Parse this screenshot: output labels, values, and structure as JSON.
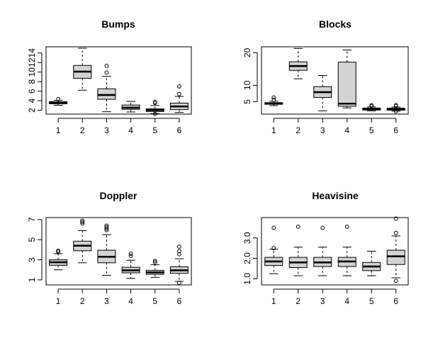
{
  "chart_data": [
    {
      "type": "boxplot",
      "title": "Bumps",
      "categories": [
        "1",
        "2",
        "3",
        "4",
        "5",
        "6"
      ],
      "ylim": [
        1.2,
        15.3
      ],
      "yticks": [
        2,
        4,
        6,
        8,
        10,
        12,
        14
      ],
      "ytick_labels": [
        "2",
        "4",
        "6",
        "8",
        "10",
        "12",
        "14"
      ],
      "boxes": [
        {
          "category": "1",
          "whisker_low": 3.05,
          "q1": 3.35,
          "median": 3.55,
          "q3": 3.8,
          "whisker_high": 4.1,
          "outliers": [
            4.35
          ]
        },
        {
          "category": "2",
          "whisker_low": 6.2,
          "q1": 8.7,
          "median": 10.1,
          "q3": 11.4,
          "whisker_high": 15.0,
          "outliers": []
        },
        {
          "category": "3",
          "whisker_low": 1.7,
          "q1": 4.3,
          "median": 5.2,
          "q3": 6.5,
          "whisker_high": 9.1,
          "outliers": [
            9.9,
            11.3
          ]
        },
        {
          "category": "4",
          "whisker_low": 1.65,
          "q1": 2.2,
          "median": 2.55,
          "q3": 3.1,
          "whisker_high": 3.85,
          "outliers": []
        },
        {
          "category": "5",
          "whisker_low": 1.3,
          "q1": 1.75,
          "median": 2.05,
          "q3": 2.3,
          "whisker_high": 3.0,
          "outliers": [
            3.55,
            3.75,
            1.25
          ]
        },
        {
          "category": "6",
          "whisker_low": 1.55,
          "q1": 2.15,
          "median": 2.8,
          "q3": 3.5,
          "whisker_high": 4.9,
          "outliers": [
            5.4,
            7.0
          ]
        }
      ]
    },
    {
      "type": "boxplot",
      "title": "Blocks",
      "categories": [
        "1",
        "2",
        "3",
        "4",
        "5",
        "6"
      ],
      "ylim": [
        1.2,
        21.8
      ],
      "yticks": [
        5,
        10,
        20
      ],
      "ytick_labels": [
        "5",
        "10",
        "20"
      ],
      "boxes": [
        {
          "category": "1",
          "whisker_low": 3.8,
          "q1": 4.2,
          "median": 4.45,
          "q3": 4.7,
          "whisker_high": 5.1,
          "outliers": [
            5.6,
            6.3
          ]
        },
        {
          "category": "2",
          "whisker_low": 12.0,
          "q1": 14.6,
          "median": 15.9,
          "q3": 17.2,
          "whisker_high": 21.3,
          "outliers": []
        },
        {
          "category": "3",
          "whisker_low": 2.2,
          "q1": 6.3,
          "median": 7.9,
          "q3": 9.6,
          "whisker_high": 13.0,
          "outliers": []
        },
        {
          "category": "4",
          "whisker_low": 3.1,
          "q1": 3.6,
          "median": 4.4,
          "q3": 17.1,
          "whisker_high": 20.8,
          "outliers": []
        },
        {
          "category": "5",
          "whisker_low": 2.2,
          "q1": 2.45,
          "median": 2.8,
          "q3": 3.05,
          "whisker_high": 3.4,
          "outliers": [
            3.7,
            3.9
          ]
        },
        {
          "category": "6",
          "whisker_low": 2.1,
          "q1": 2.4,
          "median": 2.7,
          "q3": 3.0,
          "whisker_high": 3.35,
          "outliers": [
            3.7,
            3.95,
            2.05
          ]
        }
      ]
    },
    {
      "type": "boxplot",
      "title": "Doppler",
      "categories": [
        "1",
        "2",
        "3",
        "4",
        "5",
        "6"
      ],
      "ylim": [
        0.5,
        7.2
      ],
      "yticks": [
        1,
        3,
        5,
        7
      ],
      "ytick_labels": [
        "1",
        "3",
        "5",
        "7"
      ],
      "boxes": [
        {
          "category": "1",
          "whisker_low": 2.0,
          "q1": 2.45,
          "median": 2.75,
          "q3": 3.0,
          "whisker_high": 3.6,
          "outliers": [
            3.8,
            3.9
          ]
        },
        {
          "category": "2",
          "whisker_low": 2.7,
          "q1": 3.9,
          "median": 4.4,
          "q3": 4.85,
          "whisker_high": 5.9,
          "outliers": [
            6.6,
            6.75,
            6.9
          ]
        },
        {
          "category": "3",
          "whisker_low": 1.45,
          "q1": 2.7,
          "median": 3.3,
          "q3": 3.95,
          "whisker_high": 5.5,
          "outliers": [
            5.95,
            6.1,
            6.25,
            6.4
          ]
        },
        {
          "category": "4",
          "whisker_low": 1.15,
          "q1": 1.7,
          "median": 1.95,
          "q3": 2.25,
          "whisker_high": 2.95,
          "outliers": [
            3.4,
            3.6
          ]
        },
        {
          "category": "5",
          "whisker_low": 1.25,
          "q1": 1.55,
          "median": 1.75,
          "q3": 1.95,
          "whisker_high": 2.5,
          "outliers": [
            2.75,
            2.9
          ]
        },
        {
          "category": "6",
          "whisker_low": 0.85,
          "q1": 1.65,
          "median": 1.95,
          "q3": 2.3,
          "whisker_high": 3.1,
          "outliers": [
            3.55,
            3.85,
            4.3,
            0.7
          ]
        }
      ]
    },
    {
      "type": "boxplot",
      "title": "Heavisine",
      "categories": [
        "1",
        "2",
        "3",
        "4",
        "5",
        "6"
      ],
      "ylim": [
        0.7,
        4.0
      ],
      "yticks": [
        1.0,
        2.0,
        3.0
      ],
      "ytick_labels": [
        "1.0",
        "2.0",
        "3.0"
      ],
      "boxes": [
        {
          "category": "1",
          "whisker_low": 1.25,
          "q1": 1.65,
          "median": 1.85,
          "q3": 2.05,
          "whisker_high": 2.45,
          "outliers": [
            2.5,
            3.5
          ]
        },
        {
          "category": "2",
          "whisker_low": 1.15,
          "q1": 1.55,
          "median": 1.8,
          "q3": 2.05,
          "whisker_high": 2.55,
          "outliers": [
            3.55
          ]
        },
        {
          "category": "3",
          "whisker_low": 1.15,
          "q1": 1.6,
          "median": 1.8,
          "q3": 2.05,
          "whisker_high": 2.55,
          "outliers": [
            3.5
          ]
        },
        {
          "category": "4",
          "whisker_low": 1.15,
          "q1": 1.6,
          "median": 1.85,
          "q3": 2.05,
          "whisker_high": 2.55,
          "outliers": [
            3.55
          ]
        },
        {
          "category": "5",
          "whisker_low": 1.15,
          "q1": 1.4,
          "median": 1.6,
          "q3": 1.8,
          "whisker_high": 2.35,
          "outliers": []
        },
        {
          "category": "6",
          "whisker_low": 1.05,
          "q1": 1.7,
          "median": 2.1,
          "q3": 2.4,
          "whisker_high": 3.1,
          "outliers": [
            3.25,
            3.95,
            0.9
          ]
        }
      ]
    }
  ],
  "colors": {
    "box_fill": "#d3d3d3",
    "stroke": "#000000",
    "background": "#ffffff"
  }
}
